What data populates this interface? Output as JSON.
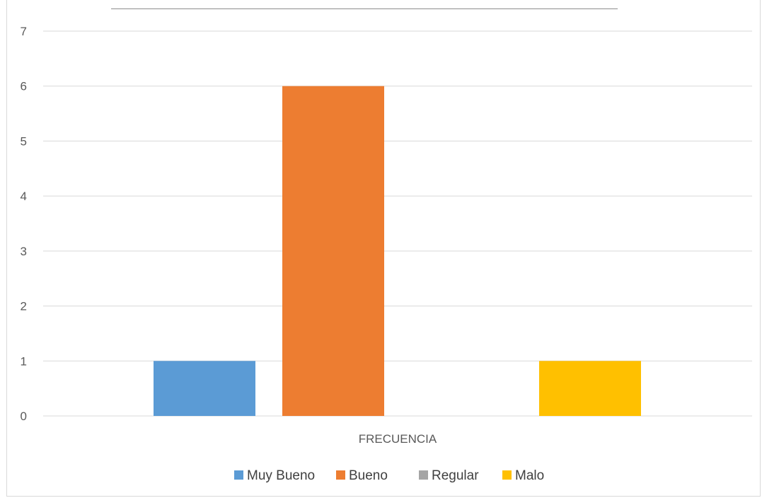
{
  "chart_data": {
    "type": "bar",
    "categories": [
      "FRECUENCIA"
    ],
    "series": [
      {
        "name": "Muy Bueno",
        "values": [
          1
        ],
        "color": "#5b9bd5"
      },
      {
        "name": "Bueno",
        "values": [
          6
        ],
        "color": "#ed7d31"
      },
      {
        "name": "Regular",
        "values": [
          0
        ],
        "color": "#a5a5a5"
      },
      {
        "name": "Malo",
        "values": [
          1
        ],
        "color": "#ffc000"
      }
    ],
    "title": "",
    "xlabel": "",
    "ylabel": "",
    "ylim": [
      0,
      7
    ],
    "yticks": [
      "0",
      "1",
      "2",
      "3",
      "4",
      "5",
      "6",
      "7"
    ],
    "grid": true,
    "legend_position": "bottom"
  }
}
